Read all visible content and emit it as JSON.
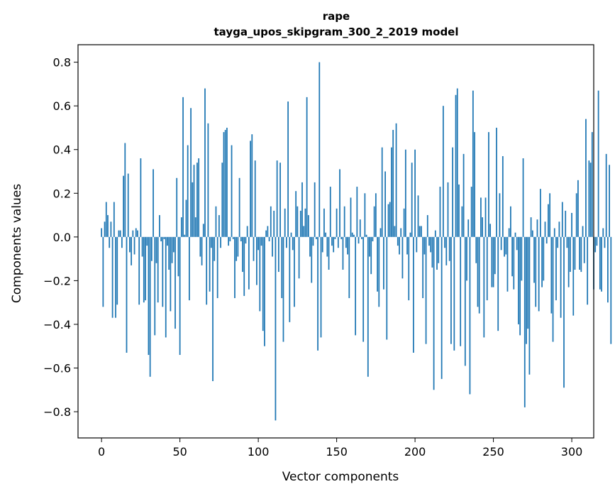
{
  "chart_data": {
    "type": "bar",
    "title_line1": "rape",
    "title_line2": "tayga_upos_skipgram_300_2_2019 model",
    "xlabel": "Vector components",
    "ylabel": "Components values",
    "xlim": [
      -15,
      314
    ],
    "ylim": [
      -0.92,
      0.88
    ],
    "xticks": [
      0,
      50,
      100,
      150,
      200,
      250,
      300
    ],
    "xtick_labels": [
      "0",
      "50",
      "100",
      "150",
      "200",
      "250",
      "300"
    ],
    "yticks": [
      -0.8,
      -0.6,
      -0.4,
      -0.2,
      0.0,
      0.2,
      0.4,
      0.6,
      0.8
    ],
    "ytick_labels": [
      "−0.8",
      "−0.6",
      "−0.4",
      "−0.2",
      "0.0",
      "0.2",
      "0.4",
      "0.6",
      "0.8"
    ],
    "bar_color": "#1f77b4",
    "values": [
      0.04,
      -0.32,
      0.07,
      0.16,
      0.1,
      -0.05,
      0.07,
      -0.37,
      0.16,
      -0.37,
      -0.31,
      0.03,
      0.03,
      -0.05,
      0.28,
      0.43,
      -0.53,
      0.29,
      -0.07,
      -0.13,
      0.03,
      -0.08,
      0.04,
      0.03,
      -0.31,
      0.36,
      -0.09,
      -0.3,
      -0.29,
      -0.04,
      -0.54,
      -0.64,
      -0.11,
      0.31,
      -0.45,
      -0.12,
      -0.3,
      0.1,
      -0.02,
      -0.32,
      -0.01,
      -0.46,
      -0.04,
      -0.15,
      -0.34,
      -0.12,
      -0.07,
      -0.42,
      0.27,
      -0.18,
      -0.54,
      0.09,
      0.64,
      0.01,
      0.17,
      0.42,
      -0.29,
      0.59,
      0.25,
      0.33,
      0.09,
      0.34,
      0.36,
      -0.09,
      -0.13,
      0.06,
      0.68,
      -0.31,
      0.52,
      -0.25,
      -0.05,
      -0.66,
      -0.11,
      0.14,
      -0.28,
      0.1,
      -0.05,
      0.34,
      0.48,
      0.49,
      0.5,
      -0.04,
      -0.02,
      0.42,
      -0.01,
      -0.28,
      -0.11,
      -0.09,
      0.27,
      -0.02,
      -0.16,
      -0.27,
      -0.03,
      0.05,
      -0.24,
      0.44,
      0.47,
      -0.11,
      0.35,
      -0.22,
      -0.06,
      -0.34,
      -0.04,
      -0.43,
      -0.5,
      0.03,
      0.05,
      -0.02,
      0.14,
      -0.09,
      0.12,
      -0.84,
      0.35,
      -0.16,
      0.34,
      -0.28,
      -0.48,
      0.13,
      -0.05,
      0.62,
      -0.39,
      0.02,
      -0.06,
      -0.32,
      0.21,
      0.14,
      -0.19,
      0.12,
      0.25,
      0.05,
      0.13,
      0.64,
      0.1,
      -0.09,
      -0.21,
      -0.04,
      0.25,
      -0.01,
      -0.52,
      0.8,
      -0.46,
      -0.07,
      0.13,
      0.02,
      -0.09,
      -0.15,
      0.23,
      -0.04,
      -0.07,
      -0.01,
      0.13,
      -0.05,
      0.31,
      -0.01,
      -0.15,
      0.14,
      -0.05,
      -0.08,
      -0.28,
      0.18,
      0.02,
      0.01,
      -0.45,
      0.23,
      -0.03,
      0.08,
      -0.01,
      -0.48,
      0.2,
      0.01,
      -0.64,
      -0.09,
      -0.17,
      -0.02,
      0.14,
      0.2,
      -0.25,
      -0.32,
      0.04,
      0.41,
      -0.24,
      0.3,
      -0.47,
      0.15,
      0.16,
      0.41,
      0.49,
      0.05,
      0.52,
      -0.04,
      -0.08,
      0.04,
      -0.19,
      0.13,
      0.4,
      -0.08,
      -0.29,
      0.02,
      0.34,
      -0.53,
      0.4,
      -0.07,
      0.19,
      0.05,
      0.05,
      -0.28,
      -0.08,
      -0.49,
      0.1,
      -0.04,
      -0.07,
      -0.14,
      -0.7,
      0.03,
      -0.15,
      -0.12,
      0.23,
      -0.65,
      0.6,
      -0.05,
      -0.13,
      0.25,
      -0.11,
      -0.49,
      0.41,
      -0.52,
      0.65,
      0.68,
      0.24,
      -0.5,
      0.14,
      0.38,
      -0.59,
      -0.2,
      0.08,
      -0.72,
      0.23,
      0.67,
      0.48,
      -0.12,
      -0.32,
      -0.35,
      0.18,
      0.09,
      -0.46,
      0.18,
      -0.29,
      0.48,
      0.06,
      -0.23,
      -0.23,
      -0.17,
      0.5,
      -0.43,
      0.2,
      -0.06,
      0.37,
      -0.09,
      -0.08,
      -0.25,
      0.04,
      0.14,
      -0.18,
      -0.24,
      0.02,
      -0.06,
      -0.4,
      -0.45,
      -0.2,
      0.36,
      -0.78,
      -0.49,
      -0.42,
      -0.63,
      0.09,
      0.03,
      -0.21,
      -0.32,
      0.08,
      -0.34,
      0.22,
      -0.23,
      -0.2,
      0.07,
      -0.03,
      0.15,
      0.2,
      -0.35,
      -0.48,
      0.04,
      -0.29,
      -0.05,
      0.07,
      -0.37,
      0.16,
      -0.69,
      0.12,
      -0.05,
      -0.23,
      -0.16,
      0.11,
      -0.36,
      -0.15,
      0.2,
      0.26,
      -0.15,
      -0.16,
      0.05,
      -0.12,
      0.54,
      -0.31,
      0.35,
      0.34,
      0.48,
      -0.24,
      -0.07,
      -0.04,
      0.67,
      -0.24,
      -0.25,
      0.04,
      -0.05,
      0.38,
      -0.3,
      0.33,
      -0.49
    ]
  }
}
